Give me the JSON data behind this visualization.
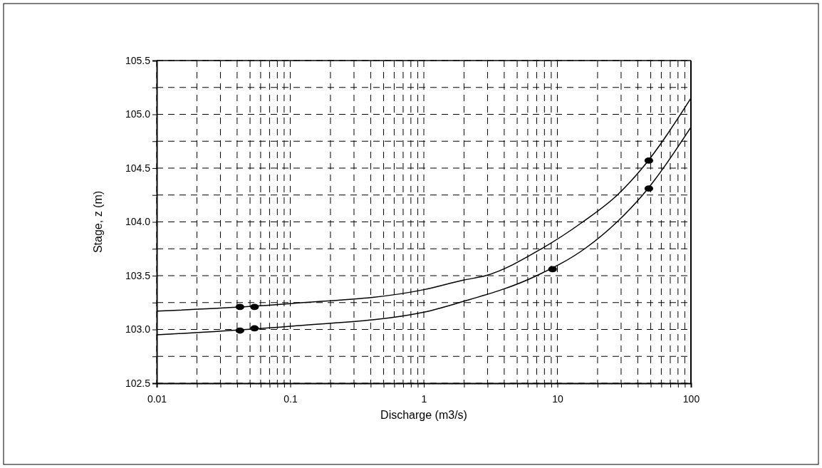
{
  "chart_data": {
    "type": "line",
    "xlabel": "Discharge (m3/s)",
    "ylabel": "Stage, z (m)",
    "log": "x",
    "grid": true,
    "marker": "none",
    "line_style": "solid",
    "xlim": [
      0.01,
      100
    ],
    "xticks": [
      0.01,
      {
        "value": 0.02,
        "label": null
      },
      {
        "value": 0.03,
        "label": null
      },
      {
        "value": 0.04,
        "label": null
      },
      {
        "value": 0.05,
        "label": null
      },
      {
        "value": 0.06,
        "label": null
      },
      {
        "value": 0.07,
        "label": null
      },
      {
        "value": 0.08,
        "label": null
      },
      {
        "value": 0.09,
        "label": null
      },
      0.1,
      {
        "value": 0.2,
        "label": null
      },
      {
        "value": 0.3,
        "label": null
      },
      {
        "value": 0.4,
        "label": null
      },
      {
        "value": 0.5,
        "label": null
      },
      {
        "value": 0.6,
        "label": null
      },
      {
        "value": 0.7,
        "label": null
      },
      {
        "value": 0.8,
        "label": null
      },
      {
        "value": 0.9,
        "label": null
      },
      1,
      {
        "value": 2,
        "label": null
      },
      {
        "value": 3,
        "label": null
      },
      {
        "value": 4,
        "label": null
      },
      {
        "value": 5,
        "label": null
      },
      {
        "value": 6,
        "label": null
      },
      {
        "value": 7,
        "label": null
      },
      {
        "value": 8,
        "label": null
      },
      {
        "value": 9,
        "label": null
      },
      10,
      {
        "value": 20,
        "label": null
      },
      {
        "value": 30,
        "label": null
      },
      {
        "value": 40,
        "label": null
      },
      {
        "value": 50,
        "label": null
      },
      {
        "value": 60,
        "label": null
      },
      {
        "value": 70,
        "label": null
      },
      {
        "value": 80,
        "label": null
      },
      {
        "value": 90,
        "label": null
      },
      100
    ],
    "ylim": [
      102.5,
      105.5
    ],
    "yticks": [
      {
        "value": 102.5,
        "label": "102.5"
      },
      {
        "value": 102.75,
        "label": null
      },
      {
        "value": 103,
        "label": "103.0"
      },
      {
        "value": 103.25,
        "label": null
      },
      {
        "value": 103.5,
        "label": "103.5"
      },
      {
        "value": 103.75,
        "label": null
      },
      {
        "value": 104,
        "label": "104.0"
      },
      {
        "value": 104.25,
        "label": null
      },
      {
        "value": 104.5,
        "label": "104.5"
      },
      {
        "value": 104.75,
        "label": null
      },
      {
        "value": 105,
        "label": "105.0"
      },
      {
        "value": 105.25,
        "label": null
      },
      {
        "value": 105.5,
        "label": "105.5"
      }
    ],
    "series": [
      {
        "color": "#000000",
        "x": [
          0.01,
          0.1,
          1,
          2,
          2.9,
          7.6,
          15.5,
          28.1,
          43.2,
          100
        ],
        "values": [
          103.17,
          103.24,
          103.37,
          103.46,
          103.5,
          103.75,
          104.0,
          104.25,
          104.5,
          105.15
        ]
      },
      {
        "color": "#000000",
        "x": [
          0.01,
          0.1,
          1,
          1.85,
          7,
          16,
          28,
          43.5,
          100
        ],
        "values": [
          102.95,
          103.03,
          103.16,
          103.25,
          103.5,
          103.75,
          104.0,
          104.25,
          104.88
        ]
      },
      {
        "type": "scatter",
        "color": "#000000",
        "marker": "circle",
        "x": [
          0.042,
          0.054,
          48.4
        ],
        "values": [
          103.21,
          103.21,
          104.57
        ]
      },
      {
        "type": "scatter",
        "color": "#000000",
        "marker": "circle",
        "x": [
          0.042,
          0.054,
          9.2,
          48.4
        ],
        "values": [
          102.99,
          103.01,
          103.56,
          104.31
        ]
      }
    ]
  }
}
